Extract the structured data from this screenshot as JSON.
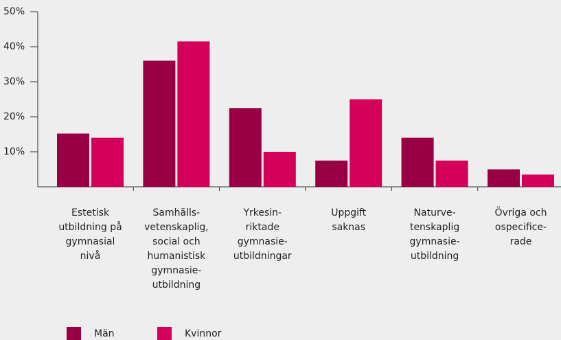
{
  "chart_data": {
    "type": "bar",
    "categories": [
      [
        "Estetisk",
        "utbildning på",
        "gymnasial",
        "nivå"
      ],
      [
        "Samhälls-",
        "vetenskaplig,",
        "social och",
        "humanistisk",
        "gymnasie-",
        "utbildning"
      ],
      [
        "Yrkesin-",
        "riktade",
        "gymnasie-",
        "utbildningar"
      ],
      [
        "Uppgift",
        "saknas"
      ],
      [
        "Naturve-",
        "tenskaplig",
        "gymnasie-",
        "utbildning"
      ],
      [
        "Övriga och",
        "ospecifice-",
        "rade"
      ]
    ],
    "series": [
      {
        "name": "Män",
        "color": "#990044",
        "values": [
          15.2,
          36,
          22.5,
          7.5,
          14,
          5
        ]
      },
      {
        "name": "Kvinnor",
        "color": "#d4005a",
        "values": [
          14,
          41.5,
          10,
          25,
          7.5,
          3.5
        ]
      }
    ],
    "ylim": [
      0,
      50
    ],
    "yticks": [
      {
        "value": 10,
        "label": "10%"
      },
      {
        "value": 20,
        "label": "20%"
      },
      {
        "value": 30,
        "label": "30%"
      },
      {
        "value": 40,
        "label": "40%"
      },
      {
        "value": 50,
        "label": "50%"
      }
    ],
    "legend": "bottom-left"
  }
}
